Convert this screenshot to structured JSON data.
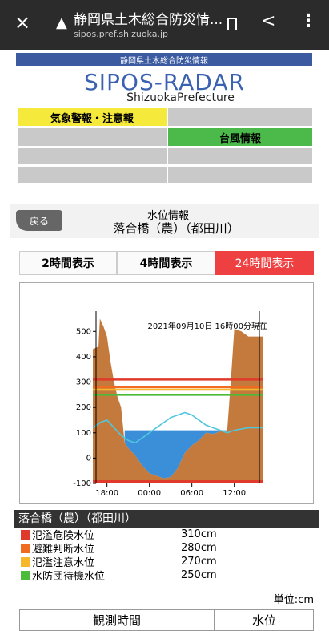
{
  "browser": {
    "title": "静岡県土木総合防災情...",
    "url": "sipos.pref.shizuoka.jp"
  },
  "banner": "静岡県土木総合防災情報",
  "logo": {
    "title": "SIPOS-RADAR",
    "subtitle": "ShizuokaPrefecture"
  },
  "menu": [
    "気象警報・注意報",
    "台風情報"
  ],
  "header": {
    "back": "戻る",
    "title": "水位情報",
    "station": "落合橋（農）（都田川）"
  },
  "tabs": [
    "2時間表示",
    "4時間表示",
    "24時間表示"
  ],
  "chart_data": {
    "type": "area",
    "subtitle": "2021年09月10日 16時00分現在",
    "x": [
      0,
      0.8,
      1,
      1.5,
      2,
      2.5,
      3,
      3.5,
      4,
      4.5,
      5,
      6,
      7,
      8,
      9,
      10,
      11,
      12,
      13,
      14,
      15,
      16,
      17,
      18,
      19,
      19.5,
      20,
      21,
      22,
      24
    ],
    "series": [
      {
        "color": "#c47a3c",
        "values": [
          430,
          440,
          550,
          520,
          480,
          380,
          300,
          240,
          200,
          60,
          40,
          10,
          -30,
          -60,
          -70,
          -80,
          -75,
          -40,
          20,
          50,
          70,
          100,
          95,
          105,
          110,
          300,
          510,
          500,
          480,
          480
        ]
      },
      {
        "color": "#3b8fd9",
        "values": [
          null,
          null,
          null,
          null,
          null,
          null,
          null,
          null,
          null,
          110,
          110,
          110,
          110,
          110,
          110,
          110,
          110,
          110,
          110,
          110,
          110,
          110,
          110,
          110,
          110,
          null,
          null,
          null,
          null,
          null
        ]
      },
      {
        "color": "#4fc7de",
        "values": [
          120,
          135,
          140,
          145,
          150,
          135,
          120,
          105,
          90,
          80,
          70,
          60,
          80,
          100,
          120,
          140,
          160,
          170,
          180,
          170,
          150,
          130,
          120,
          110,
          100,
          105,
          110,
          115,
          120,
          120
        ]
      }
    ],
    "xlim": [
      0,
      24
    ],
    "ylim": [
      -100,
      580
    ],
    "xticks": [
      {
        "value": 2,
        "label": "18:00"
      },
      {
        "value": 8,
        "label": "00:00"
      },
      {
        "value": 14,
        "label": "06:00"
      },
      {
        "value": 20,
        "label": "12:00"
      }
    ],
    "yticks": [
      -100,
      0,
      100,
      200,
      300,
      400,
      500
    ],
    "thresholds": [
      {
        "name": "氾濫危険水位",
        "value": 310,
        "label": "310cm",
        "color": "#e03a2a"
      },
      {
        "name": "避難判断水位",
        "value": 280,
        "label": "280cm",
        "color": "#f06a20"
      },
      {
        "name": "氾濫注意水位",
        "value": 270,
        "label": "270cm",
        "color": "#f6b72a"
      },
      {
        "name": "水防団待機水位",
        "value": 250,
        "label": "250cm",
        "color": "#4cbb3a"
      }
    ]
  },
  "section_title": "落合橋（農）（都田川）",
  "unit": "単位:cm",
  "footer": [
    "観測時間",
    "水位"
  ]
}
